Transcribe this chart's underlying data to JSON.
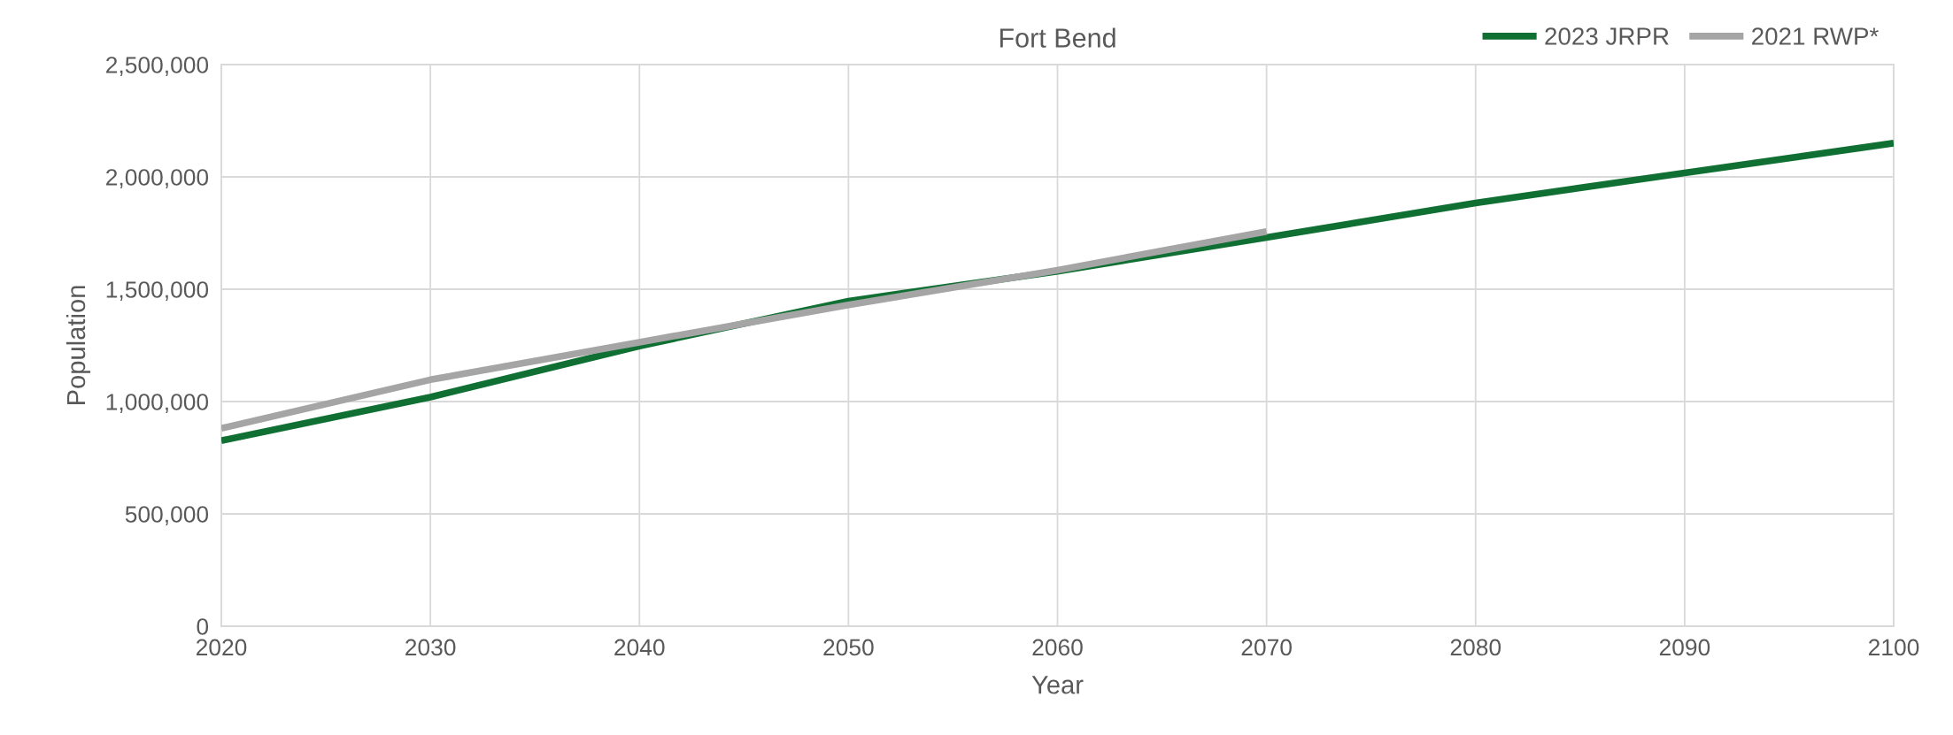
{
  "chart_data": {
    "type": "line",
    "title": "Fort Bend",
    "xlabel": "Year",
    "ylabel": "Population",
    "x": [
      2020,
      2030,
      2040,
      2050,
      2060,
      2070,
      2080,
      2090,
      2100
    ],
    "series": [
      {
        "name": "2023 JRPR",
        "color": "#107033",
        "values": [
          826000,
          1020000,
          1247000,
          1447000,
          1580000,
          1730000,
          1884000,
          2018000,
          2150000
        ]
      },
      {
        "name": "2021 RWP*",
        "color": "#a5a5a5",
        "values": [
          881000,
          1097000,
          1264000,
          1430000,
          1585000,
          1757000,
          null,
          null,
          null
        ]
      }
    ],
    "xlim": [
      2020,
      2100
    ],
    "xticks": [
      2020,
      2030,
      2040,
      2050,
      2060,
      2070,
      2080,
      2090,
      2100
    ],
    "ylim": [
      0,
      2500000
    ],
    "yticks": [
      {
        "value": 0,
        "label": "0"
      },
      {
        "value": 500000,
        "label": "500,000"
      },
      {
        "value": 1000000,
        "label": "1,000,000"
      },
      {
        "value": 1500000,
        "label": "1,500,000"
      },
      {
        "value": 2000000,
        "label": "2,000,000"
      },
      {
        "value": 2500000,
        "label": "2,500,000"
      }
    ],
    "grid": true,
    "legend": "top right",
    "marker": "none",
    "line_style": "solid"
  }
}
